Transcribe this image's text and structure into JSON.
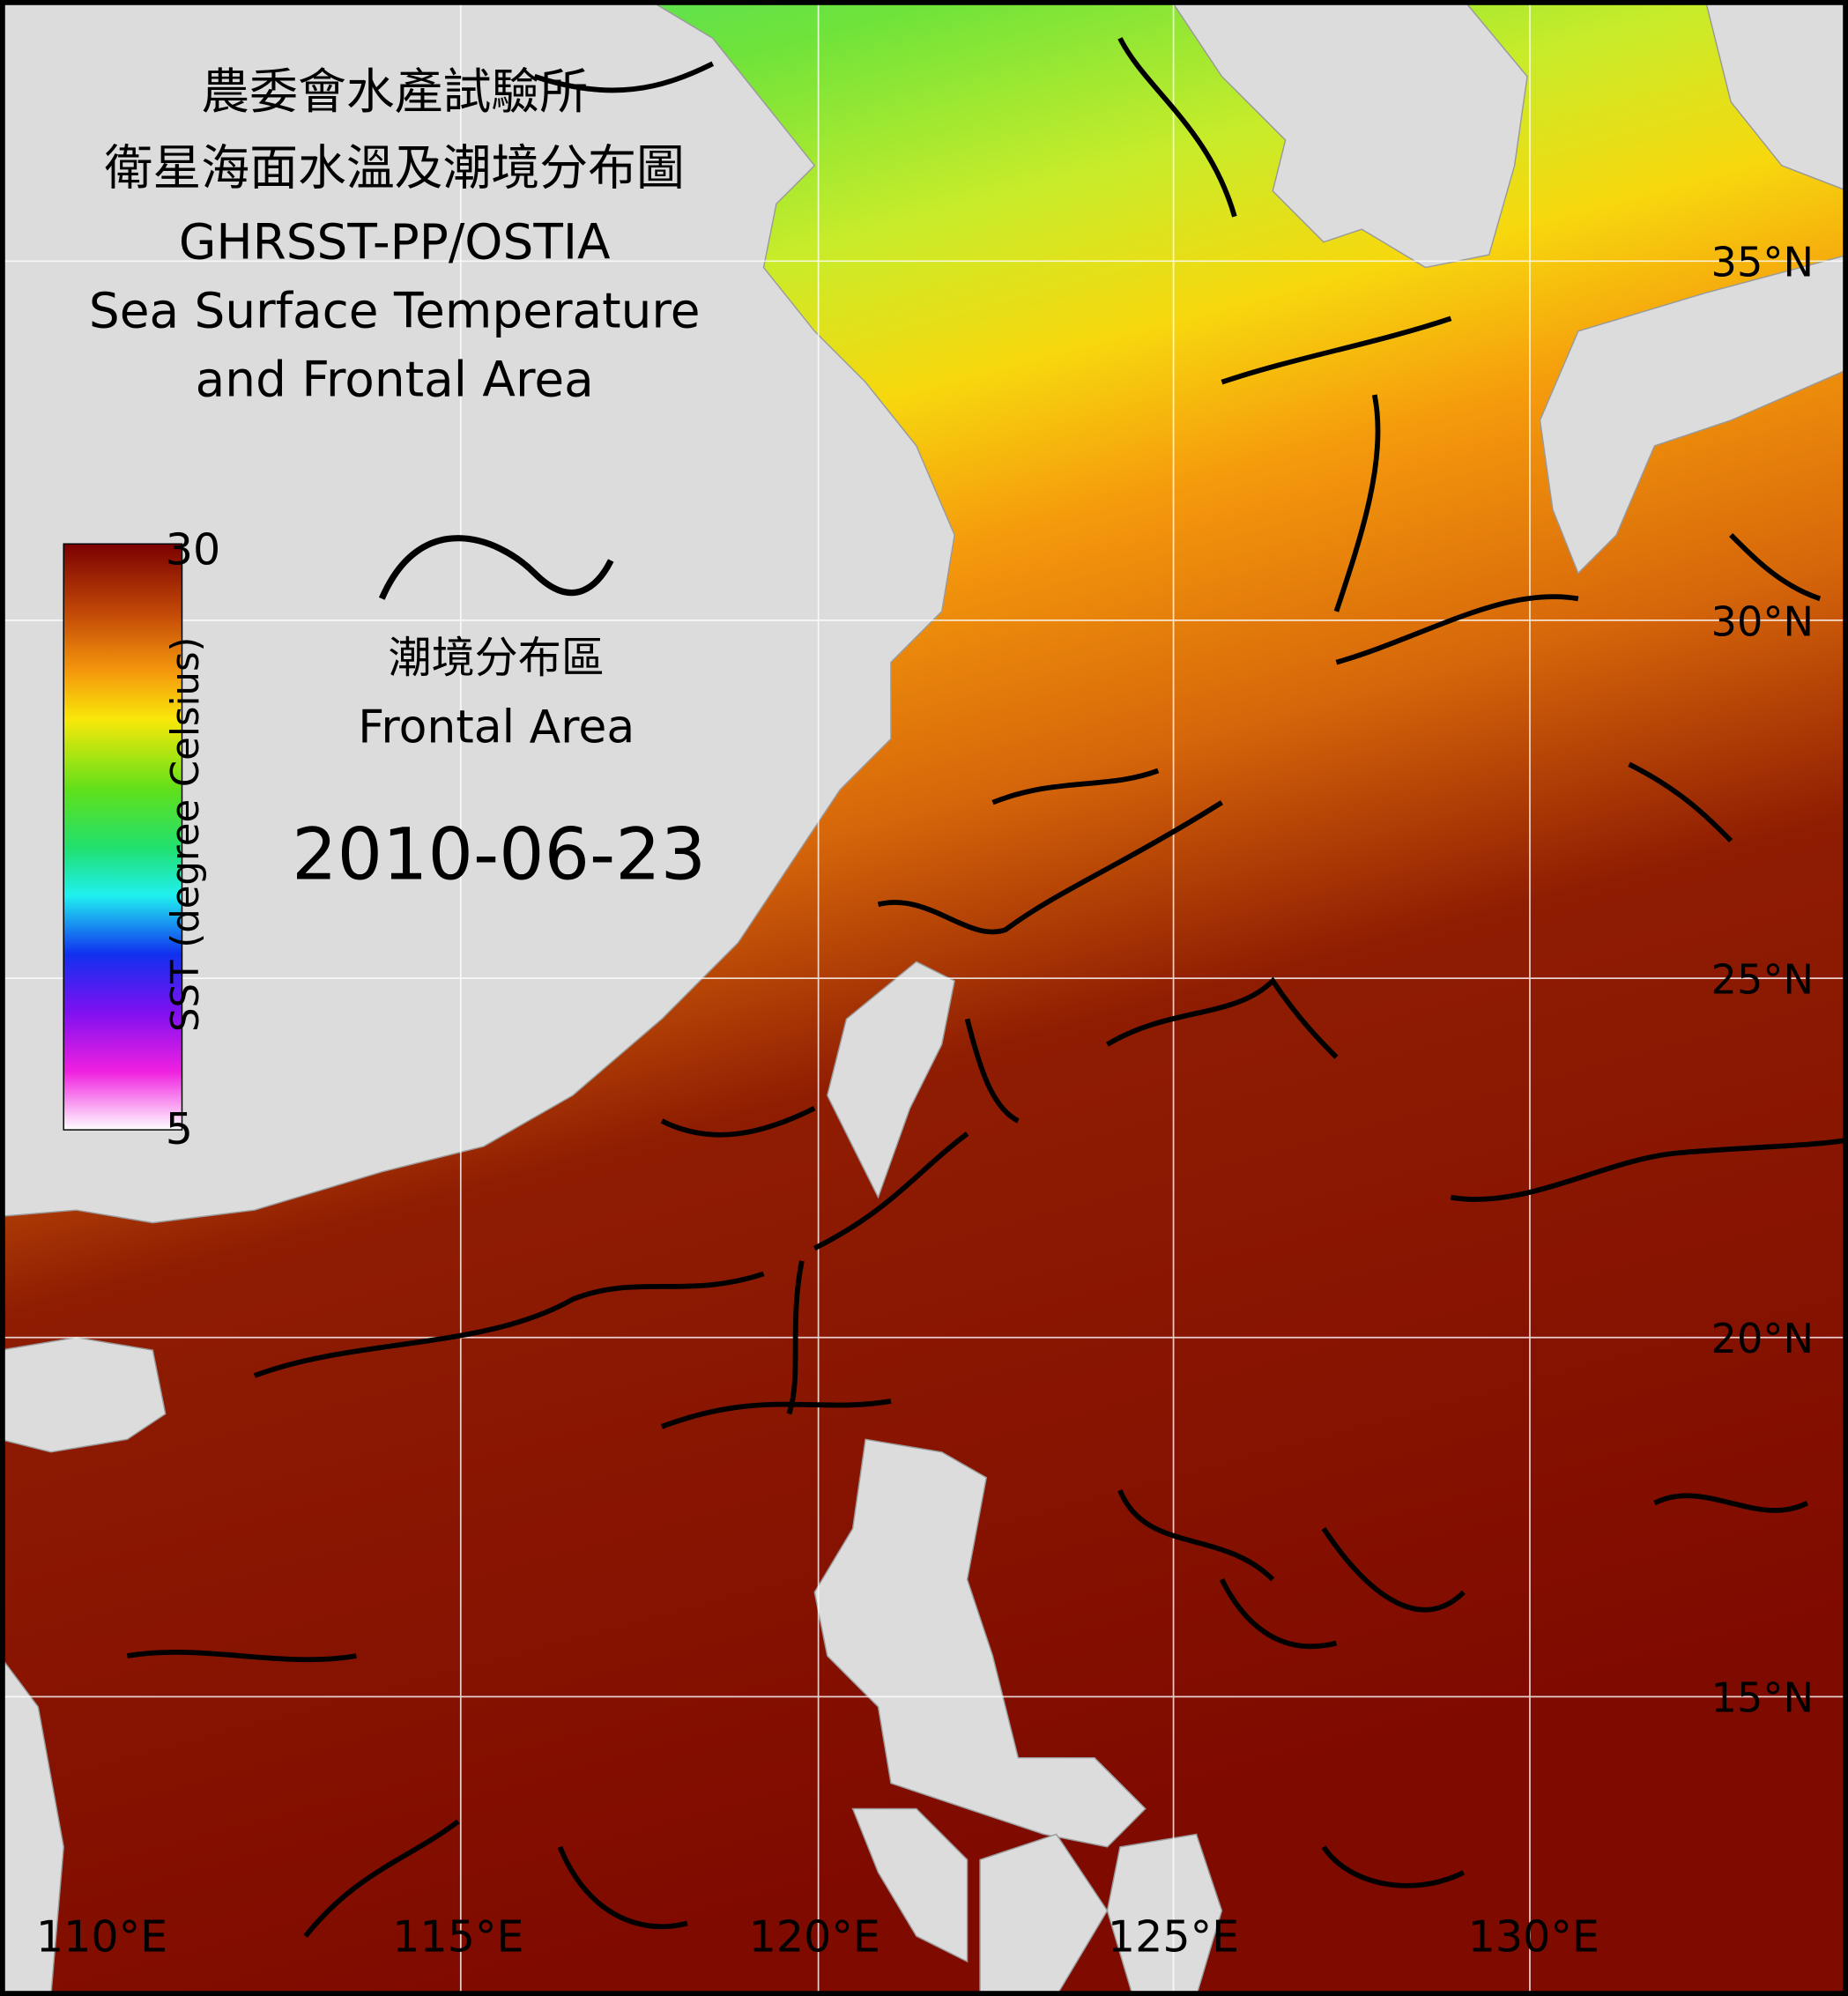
{
  "header": {
    "title_lines": [
      "農委會水產試驗所",
      "衛星海面水溫及潮境分布圖",
      "GHRSST-PP/OSTIA",
      "Sea Surface Temperature",
      "and Frontal Area"
    ]
  },
  "colorbar": {
    "label": "SST (degree Celsius)",
    "max": "30",
    "min": "5"
  },
  "legend": {
    "zh": "潮境分布區",
    "en": "Frontal Area"
  },
  "date": "2010-06-23",
  "lat_labels": [
    "35°N",
    "30°N",
    "25°N",
    "20°N",
    "15°N"
  ],
  "lon_labels": [
    "110°E",
    "115°E",
    "120°E",
    "125°E",
    "130°E"
  ]
}
